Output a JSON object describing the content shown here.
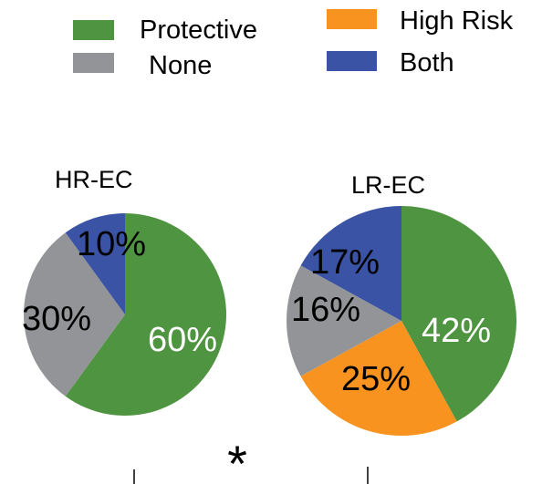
{
  "chart_data": {
    "type": "pie",
    "legend": {
      "placement": "top",
      "entries": [
        {
          "label": "Protective",
          "color": "#4f9440"
        },
        {
          "label": "High Risk",
          "color": "#f7931e"
        },
        {
          "label": "None",
          "color": "#929497"
        },
        {
          "label": "Both",
          "color": "#3a53a4"
        }
      ]
    },
    "pies": [
      {
        "title": "HR-EC",
        "slices": [
          {
            "category": "Protective",
            "value": 60,
            "label": "60%",
            "color": "#4f9440"
          },
          {
            "category": "None",
            "value": 30,
            "label": "30%",
            "color": "#929497"
          },
          {
            "category": "Both",
            "value": 10,
            "label": "10%",
            "color": "#3a53a4"
          }
        ]
      },
      {
        "title": "LR-EC",
        "slices": [
          {
            "category": "Protective",
            "value": 42,
            "label": "42%",
            "color": "#4f9440"
          },
          {
            "category": "High Risk",
            "value": 25,
            "label": "25%",
            "color": "#f7931e"
          },
          {
            "category": "None",
            "value": 16,
            "label": "16%",
            "color": "#929497"
          },
          {
            "category": "Both",
            "value": 17,
            "label": "17%",
            "color": "#3a53a4"
          }
        ]
      }
    ],
    "annotation": "*"
  }
}
